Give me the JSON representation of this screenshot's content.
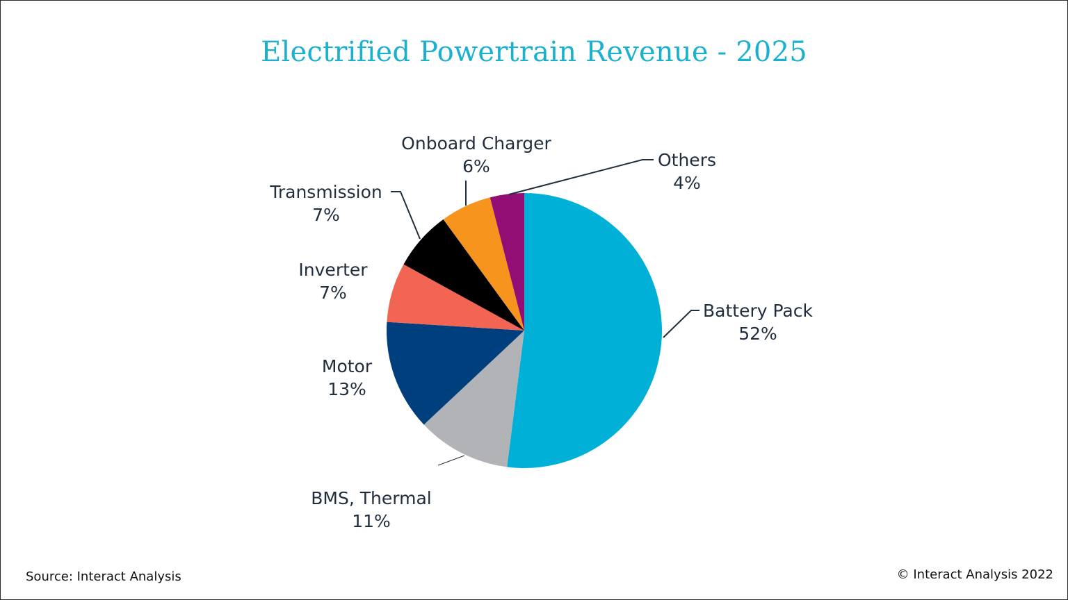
{
  "chart_data": {
    "type": "pie",
    "title": "Electrified Powertrain Revenue - 2025",
    "unit": "%",
    "slices": [
      {
        "name": "Battery Pack",
        "value": 52,
        "label": "52%",
        "color": "#00b0d6"
      },
      {
        "name": "BMS, Thermal",
        "value": 11,
        "label": "11%",
        "color": "#b1b3b6"
      },
      {
        "name": "Motor",
        "value": 13,
        "label": "13%",
        "color": "#003f7d"
      },
      {
        "name": "Inverter",
        "value": 7,
        "label": "7%",
        "color": "#f26552"
      },
      {
        "name": "Transmission",
        "value": 7,
        "label": "7%",
        "color": "#000000"
      },
      {
        "name": "Onboard Charger",
        "value": 6,
        "label": "6%",
        "color": "#f7941e"
      },
      {
        "name": "Others",
        "value": 4,
        "label": "4%",
        "color": "#930e74"
      }
    ],
    "start_angle": "12 o'clock",
    "direction": "clockwise",
    "legend": "none (labels on slices)"
  },
  "footer": {
    "source": "Source: Interact Analysis",
    "copyright": "© Interact Analysis 2022"
  }
}
